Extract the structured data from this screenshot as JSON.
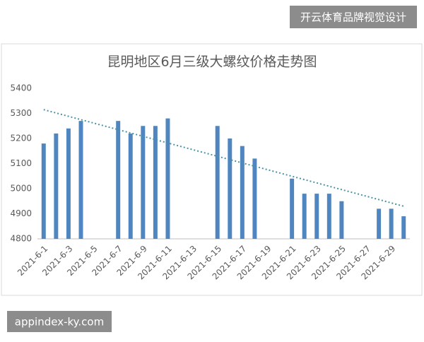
{
  "chart_data": {
    "type": "bar",
    "title": "昆明地区6月三级大螺纹价格走势图",
    "categories": [
      "2021-6-1",
      null,
      "2021-6-3",
      null,
      "2021-6-5",
      null,
      "2021-6-7",
      null,
      "2021-6-9",
      null,
      "2021-6-11",
      null,
      "2021-6-13",
      null,
      "2021-6-15",
      null,
      "2021-6-17",
      null,
      "2021-6-19",
      null,
      "2021-6-21",
      null,
      "2021-6-23",
      null,
      "2021-6-25",
      null,
      "2021-6-27",
      null,
      "2021-6-29",
      null
    ],
    "values": [
      5180,
      5220,
      5240,
      5270,
      null,
      null,
      5270,
      5220,
      5250,
      5250,
      5280,
      null,
      null,
      null,
      5250,
      5200,
      5170,
      5120,
      null,
      null,
      5040,
      4980,
      4980,
      4980,
      4950,
      null,
      null,
      4920,
      4920,
      4890
    ],
    "color": "#4f86bf",
    "trendline": [
      5315,
      4930
    ],
    "trendline_color": "#4a93a6",
    "ylim": [
      4800,
      5400
    ],
    "yticks": [
      4800,
      4900,
      5000,
      5100,
      5200,
      5300,
      5400
    ],
    "grid": false
  },
  "watermarks": {
    "top": "开云体育品牌视觉设计",
    "bottom": "appindex-ky.com"
  }
}
